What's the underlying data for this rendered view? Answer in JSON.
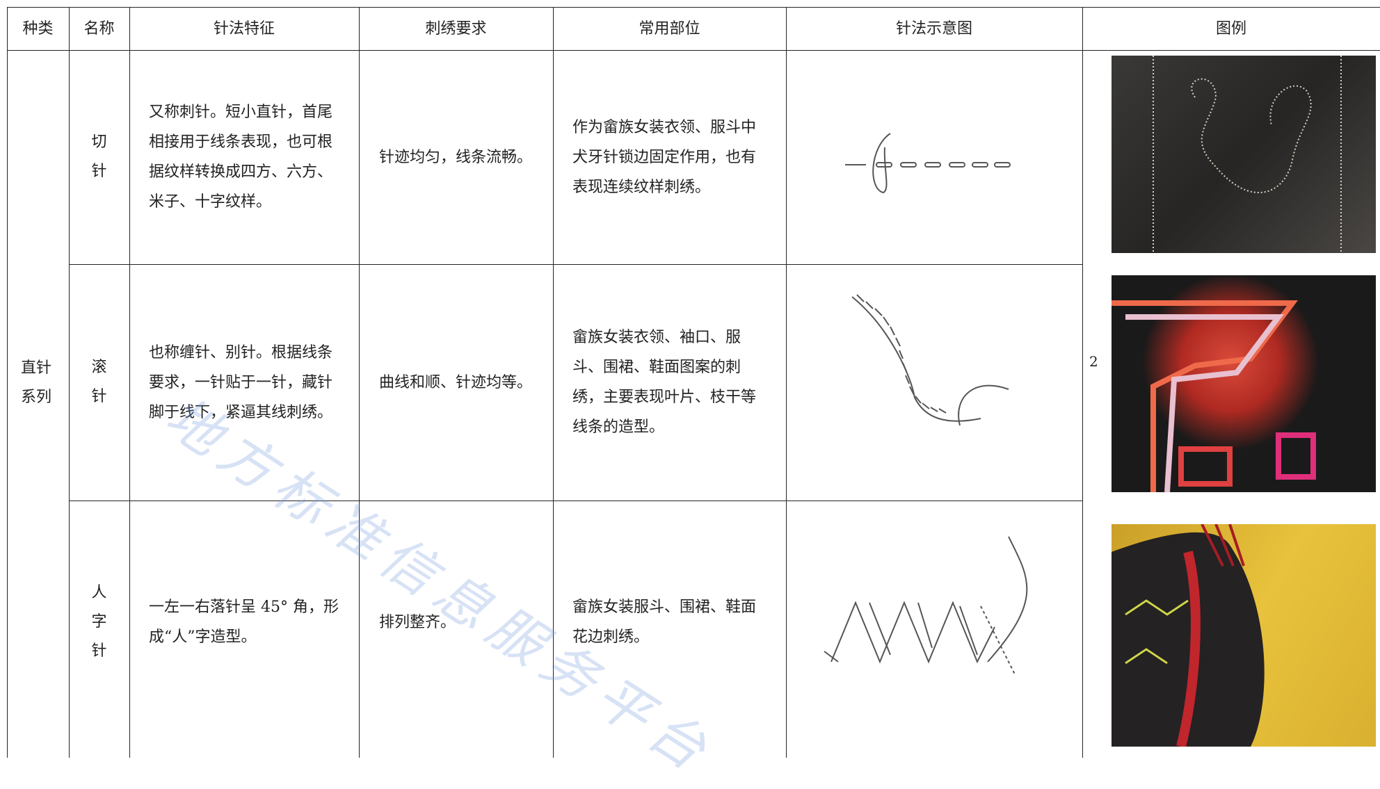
{
  "table": {
    "header": [
      "种类",
      "名称",
      "针法特征",
      "刺绣要求",
      "常用部位",
      "针法示意图",
      "图例"
    ],
    "category": "直针系列",
    "rows": [
      {
        "name": "切针",
        "feature": "又称刺针。短小直针，首尾相接用于线条表现，也可根据纹样转换成四方、六方、米子、十字纹样。",
        "requirement": "针迹均匀，线条流畅。",
        "location": "作为畲族女装衣领、服斗中犬牙针锁边固定作用，也有表现连续纹样刺绣。"
      },
      {
        "name": "滚针",
        "feature": "也称缠针、别针。根据线条要求，一针贴于一针，藏针脚于线下，紧逼其线刺绣。",
        "requirement": "曲线和顺、针迹均等。",
        "location": "畲族女装衣领、袖口、服斗、围裙、鞋面图案的刺绣，主要表现叶片、枝干等线条的造型。"
      },
      {
        "name": "人字针",
        "feature": "一左一右落针呈 45° 角，形成“人”字造型。",
        "requirement": "排列整齐。",
        "location": "畲族女装服斗、围裙、鞋面花边刺绣。"
      }
    ],
    "figure_note": "2"
  },
  "watermark": "地方标准信息服务平台"
}
